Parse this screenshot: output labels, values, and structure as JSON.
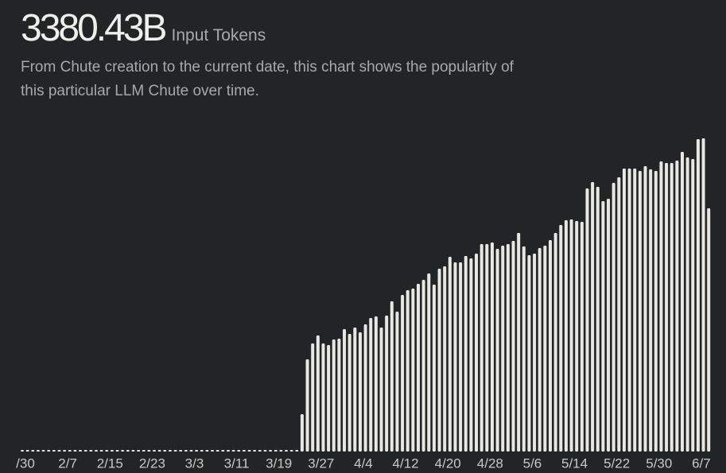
{
  "headline": {
    "value": "3380.43B",
    "unit": "Input Tokens",
    "description": "From Chute creation to the current date, this chart shows the popularity of this particular LLM Chute over time."
  },
  "chart_data": {
    "type": "bar",
    "color": "#e9e7e1",
    "ylim": [
      0,
      400
    ],
    "categories": [
      "/30",
      null,
      null,
      null,
      null,
      null,
      null,
      null,
      "2/7",
      null,
      null,
      null,
      null,
      null,
      null,
      null,
      "2/15",
      null,
      null,
      null,
      null,
      null,
      null,
      null,
      "2/23",
      null,
      null,
      null,
      null,
      null,
      null,
      null,
      "3/3",
      null,
      null,
      null,
      null,
      null,
      null,
      null,
      "3/11",
      null,
      null,
      null,
      null,
      null,
      null,
      null,
      "3/19",
      null,
      null,
      null,
      null,
      null,
      null,
      null,
      "3/27",
      null,
      null,
      null,
      null,
      null,
      null,
      null,
      "4/4",
      null,
      null,
      null,
      null,
      null,
      null,
      null,
      "4/12",
      null,
      null,
      null,
      null,
      null,
      null,
      null,
      "4/20",
      null,
      null,
      null,
      null,
      null,
      null,
      null,
      "4/28",
      null,
      null,
      null,
      null,
      null,
      null,
      null,
      "5/6",
      null,
      null,
      null,
      null,
      null,
      null,
      null,
      "5/14",
      null,
      null,
      null,
      null,
      null,
      null,
      null,
      "5/22",
      null,
      null,
      null,
      null,
      null,
      null,
      null,
      "5/30",
      null,
      null,
      null,
      null,
      null,
      null,
      null,
      "6/7",
      null,
      null
    ],
    "values": [
      0,
      0,
      0,
      0,
      0,
      0,
      0,
      0,
      0,
      0,
      0,
      0,
      0,
      0,
      0,
      0,
      0,
      0,
      0,
      0,
      0,
      0,
      0,
      0,
      0,
      0,
      0,
      0,
      0,
      0,
      0,
      0,
      0,
      0,
      0,
      0,
      0,
      0,
      0,
      0,
      0,
      0,
      0,
      0,
      0,
      0,
      0,
      0,
      0,
      0,
      0,
      0,
      0,
      47,
      116,
      136,
      146,
      136,
      134,
      141,
      142,
      154,
      148,
      156,
      150,
      160,
      168,
      170,
      156,
      171,
      189,
      176,
      197,
      203,
      205,
      211,
      216,
      224,
      210,
      230,
      233,
      245,
      238,
      238,
      246,
      243,
      249,
      261,
      261,
      263,
      255,
      259,
      261,
      265,
      275,
      258,
      247,
      249,
      256,
      259,
      266,
      275,
      285,
      291,
      292,
      290,
      289,
      331,
      339,
      333,
      315,
      318,
      338,
      345,
      356,
      356,
      356,
      353,
      359,
      355,
      353,
      365,
      363,
      363,
      366,
      377,
      370,
      368,
      393,
      394,
      306
    ]
  }
}
